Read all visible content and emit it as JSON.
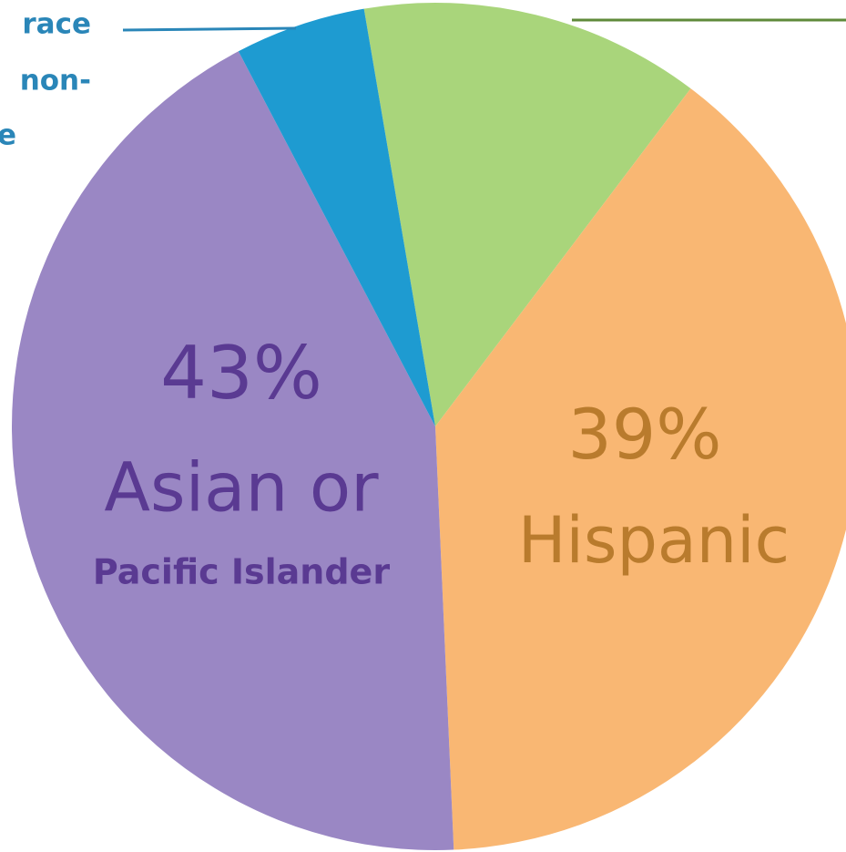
{
  "chart_data": {
    "type": "pie",
    "values": [
      13,
      39,
      43,
      5
    ],
    "colors": [
      "#a9d57b",
      "#f9b773",
      "#9a87c4",
      "#1e9bd1"
    ],
    "value_labels": [
      null,
      "39%",
      "43%",
      null
    ],
    "labels": [
      null,
      [
        "Hispanic"
      ],
      [
        "Asian or",
        "Pacific Islander"
      ],
      [
        "race",
        "non-",
        "e"
      ]
    ],
    "label_colors": [
      "#5f8a3a",
      "#b97b2d",
      "#5a3a92",
      "#2a86b8"
    ]
  }
}
